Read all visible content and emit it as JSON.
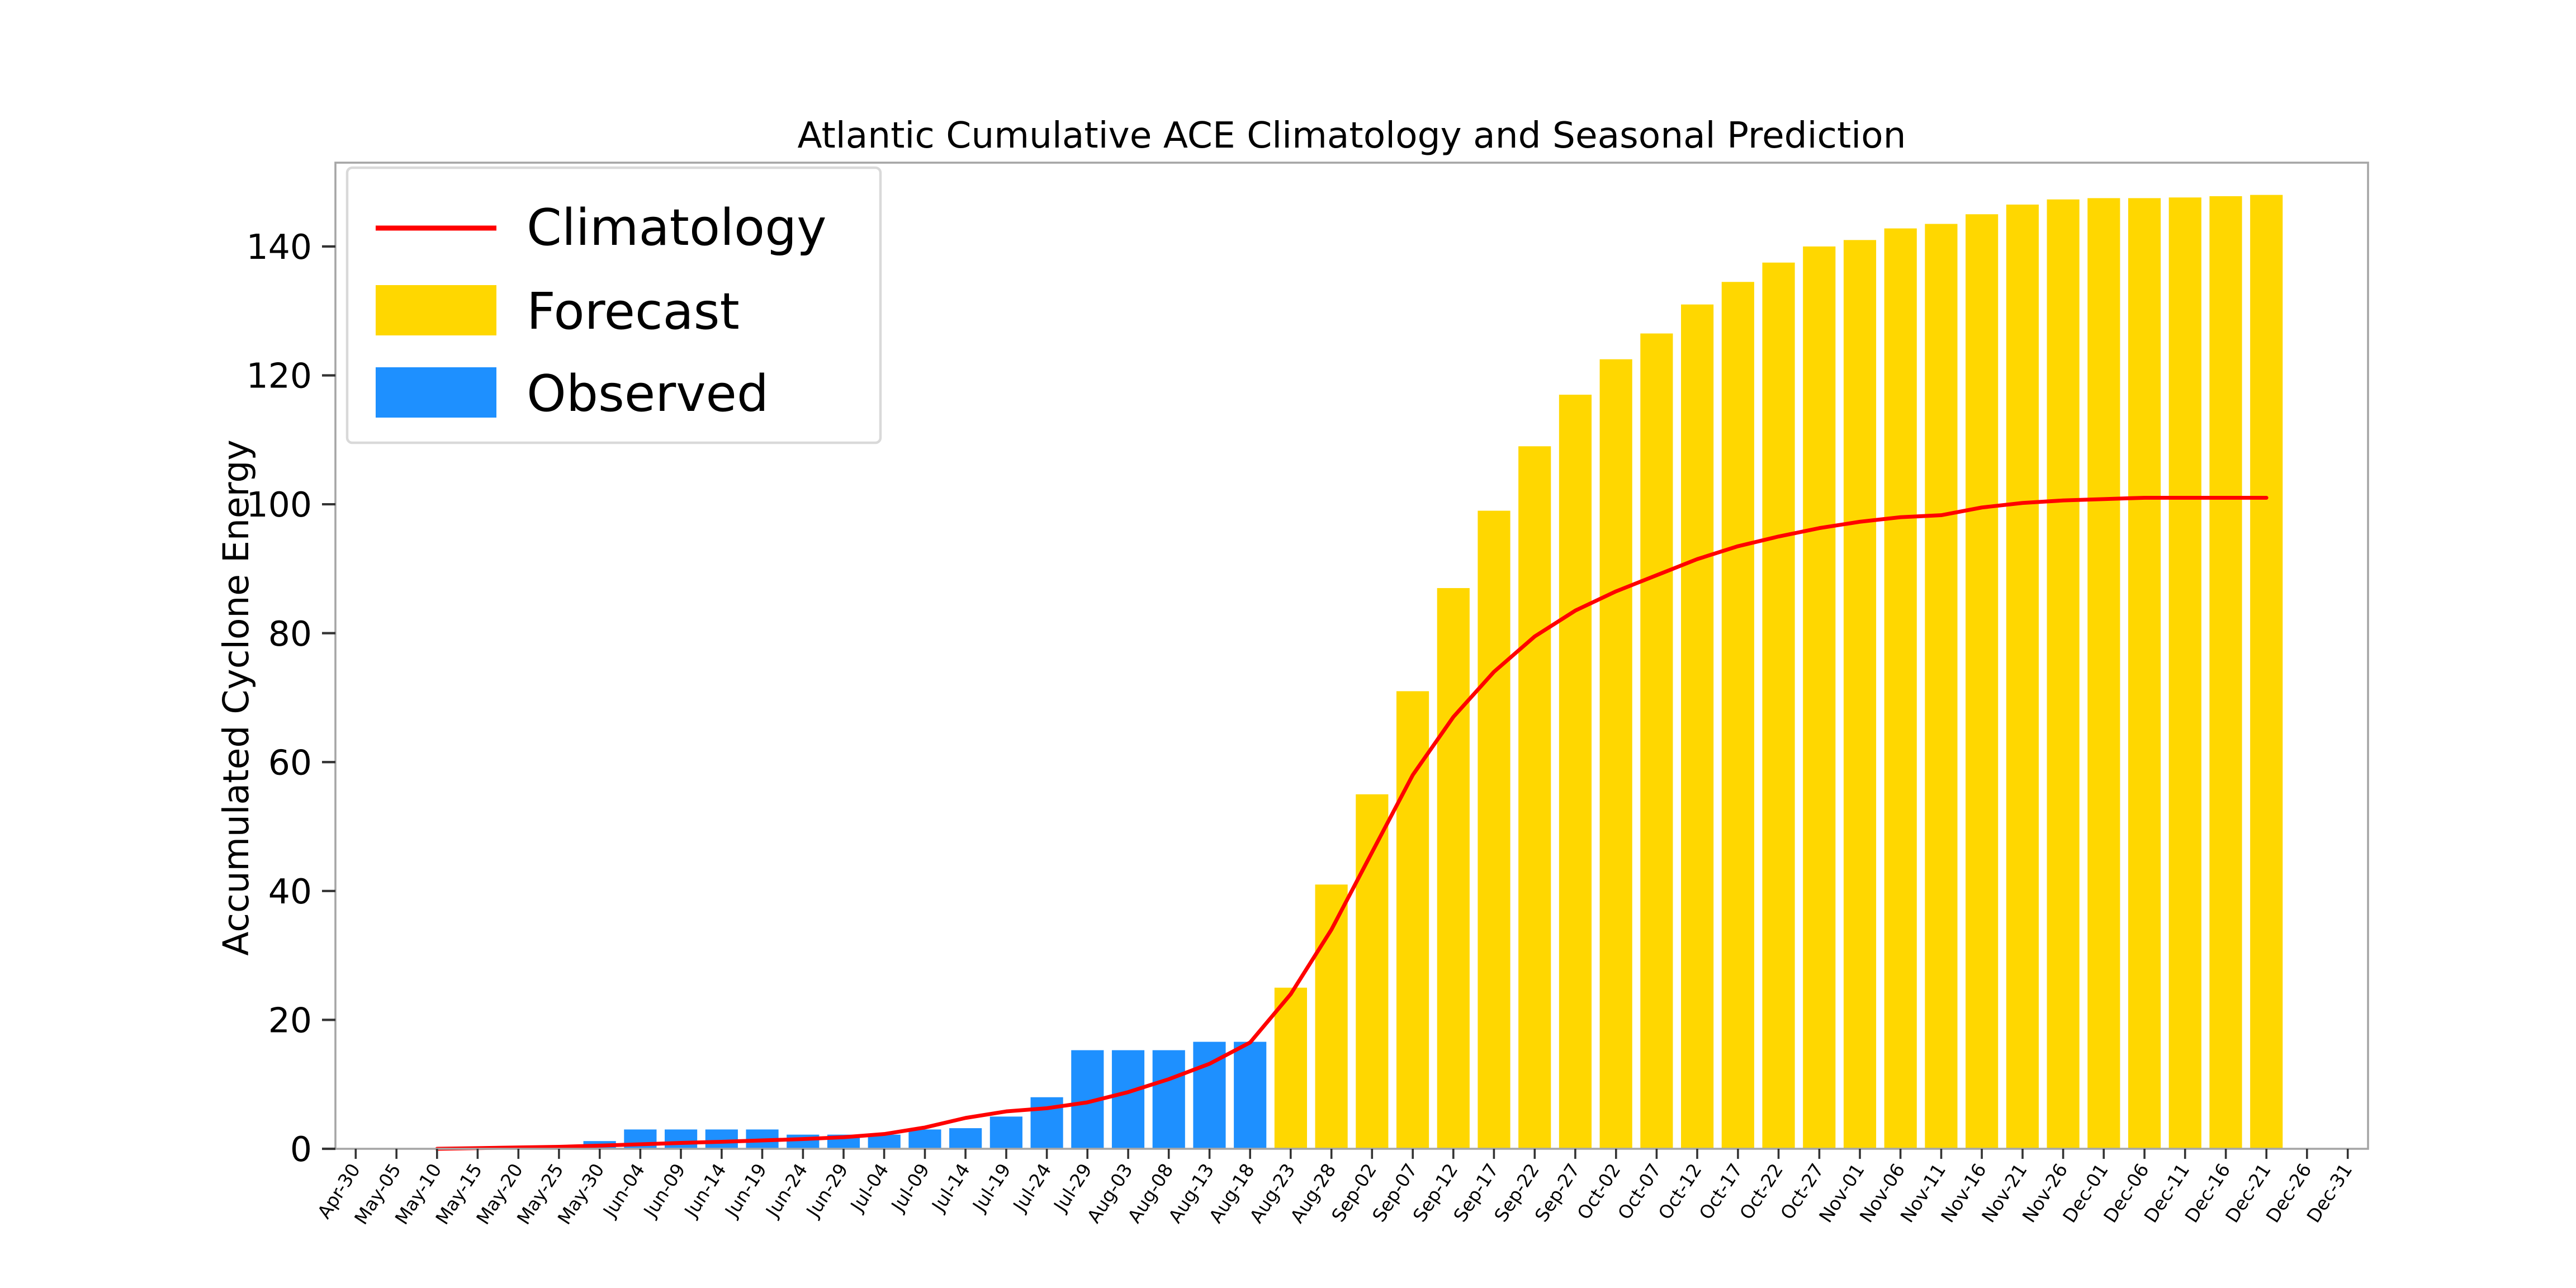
{
  "chart": {
    "title": "Atlantic Cumulative ACE Climatology and Seasonal Prediction",
    "ylabel": "Accumulated Cyclone Energy",
    "legend": [
      "Climatology",
      "Forecast",
      "Observed"
    ]
  },
  "chart_data": {
    "type": "bar",
    "title": "Atlantic Cumulative ACE Climatology and Seasonal Prediction",
    "xlabel": "",
    "ylabel": "Accumulated Cyclone Energy",
    "ylim": [
      0,
      153
    ],
    "yticks": [
      0,
      20,
      40,
      60,
      80,
      100,
      120,
      140
    ],
    "grid": false,
    "legend_position": "upper left",
    "categories": [
      "Apr-30",
      "May-05",
      "May-10",
      "May-15",
      "May-20",
      "May-25",
      "May-30",
      "Jun-04",
      "Jun-09",
      "Jun-14",
      "Jun-19",
      "Jun-24",
      "Jun-29",
      "Jul-04",
      "Jul-09",
      "Jul-14",
      "Jul-19",
      "Jul-24",
      "Jul-29",
      "Aug-03",
      "Aug-08",
      "Aug-13",
      "Aug-18",
      "Aug-23",
      "Aug-28",
      "Sep-02",
      "Sep-07",
      "Sep-12",
      "Sep-17",
      "Sep-22",
      "Sep-27",
      "Oct-02",
      "Oct-07",
      "Oct-12",
      "Oct-17",
      "Oct-22",
      "Oct-27",
      "Nov-01",
      "Nov-06",
      "Nov-11",
      "Nov-16",
      "Nov-21",
      "Nov-26",
      "Dec-01",
      "Dec-06",
      "Dec-11",
      "Dec-16",
      "Dec-21",
      "Dec-26",
      "Dec-31"
    ],
    "series": [
      {
        "name": "Observed",
        "type": "bar",
        "color": "#1E90FF",
        "values": [
          null,
          null,
          null,
          null,
          null,
          null,
          1.2,
          3,
          3,
          3,
          3,
          2.2,
          2.2,
          2.2,
          3,
          3.2,
          5,
          8,
          15.3,
          15.3,
          15.3,
          16.6,
          16.6,
          null,
          null,
          null,
          null,
          null,
          null,
          null,
          null,
          null,
          null,
          null,
          null,
          null,
          null,
          null,
          null,
          null,
          null,
          null,
          null,
          null,
          null,
          null,
          null,
          null,
          null,
          null
        ]
      },
      {
        "name": "Forecast",
        "type": "bar",
        "color": "#FFD700",
        "values": [
          null,
          null,
          null,
          null,
          null,
          null,
          null,
          null,
          null,
          null,
          null,
          null,
          null,
          null,
          null,
          null,
          null,
          null,
          null,
          null,
          null,
          null,
          null,
          25,
          41,
          55,
          71,
          87,
          99,
          109,
          117,
          122.5,
          126.5,
          131,
          134.5,
          137.5,
          140,
          141,
          142.8,
          143.5,
          145,
          146.5,
          147.3,
          147.5,
          147.5,
          147.6,
          147.8,
          148,
          null,
          null
        ]
      },
      {
        "name": "Climatology",
        "type": "line",
        "color": "#FF0000",
        "values": [
          null,
          null,
          0,
          0.1,
          0.2,
          0.3,
          0.5,
          0.7,
          0.9,
          1.1,
          1.3,
          1.5,
          1.8,
          2.3,
          3.3,
          4.8,
          5.8,
          6.3,
          7.2,
          8.8,
          10.8,
          13.2,
          16.5,
          24,
          34,
          46,
          58,
          67,
          74,
          79.5,
          83.5,
          86.5,
          89,
          91.5,
          93.5,
          95,
          96.3,
          97.3,
          98,
          98.3,
          99.5,
          100.2,
          100.6,
          100.8,
          101,
          101,
          101,
          101,
          null,
          null
        ]
      }
    ]
  }
}
